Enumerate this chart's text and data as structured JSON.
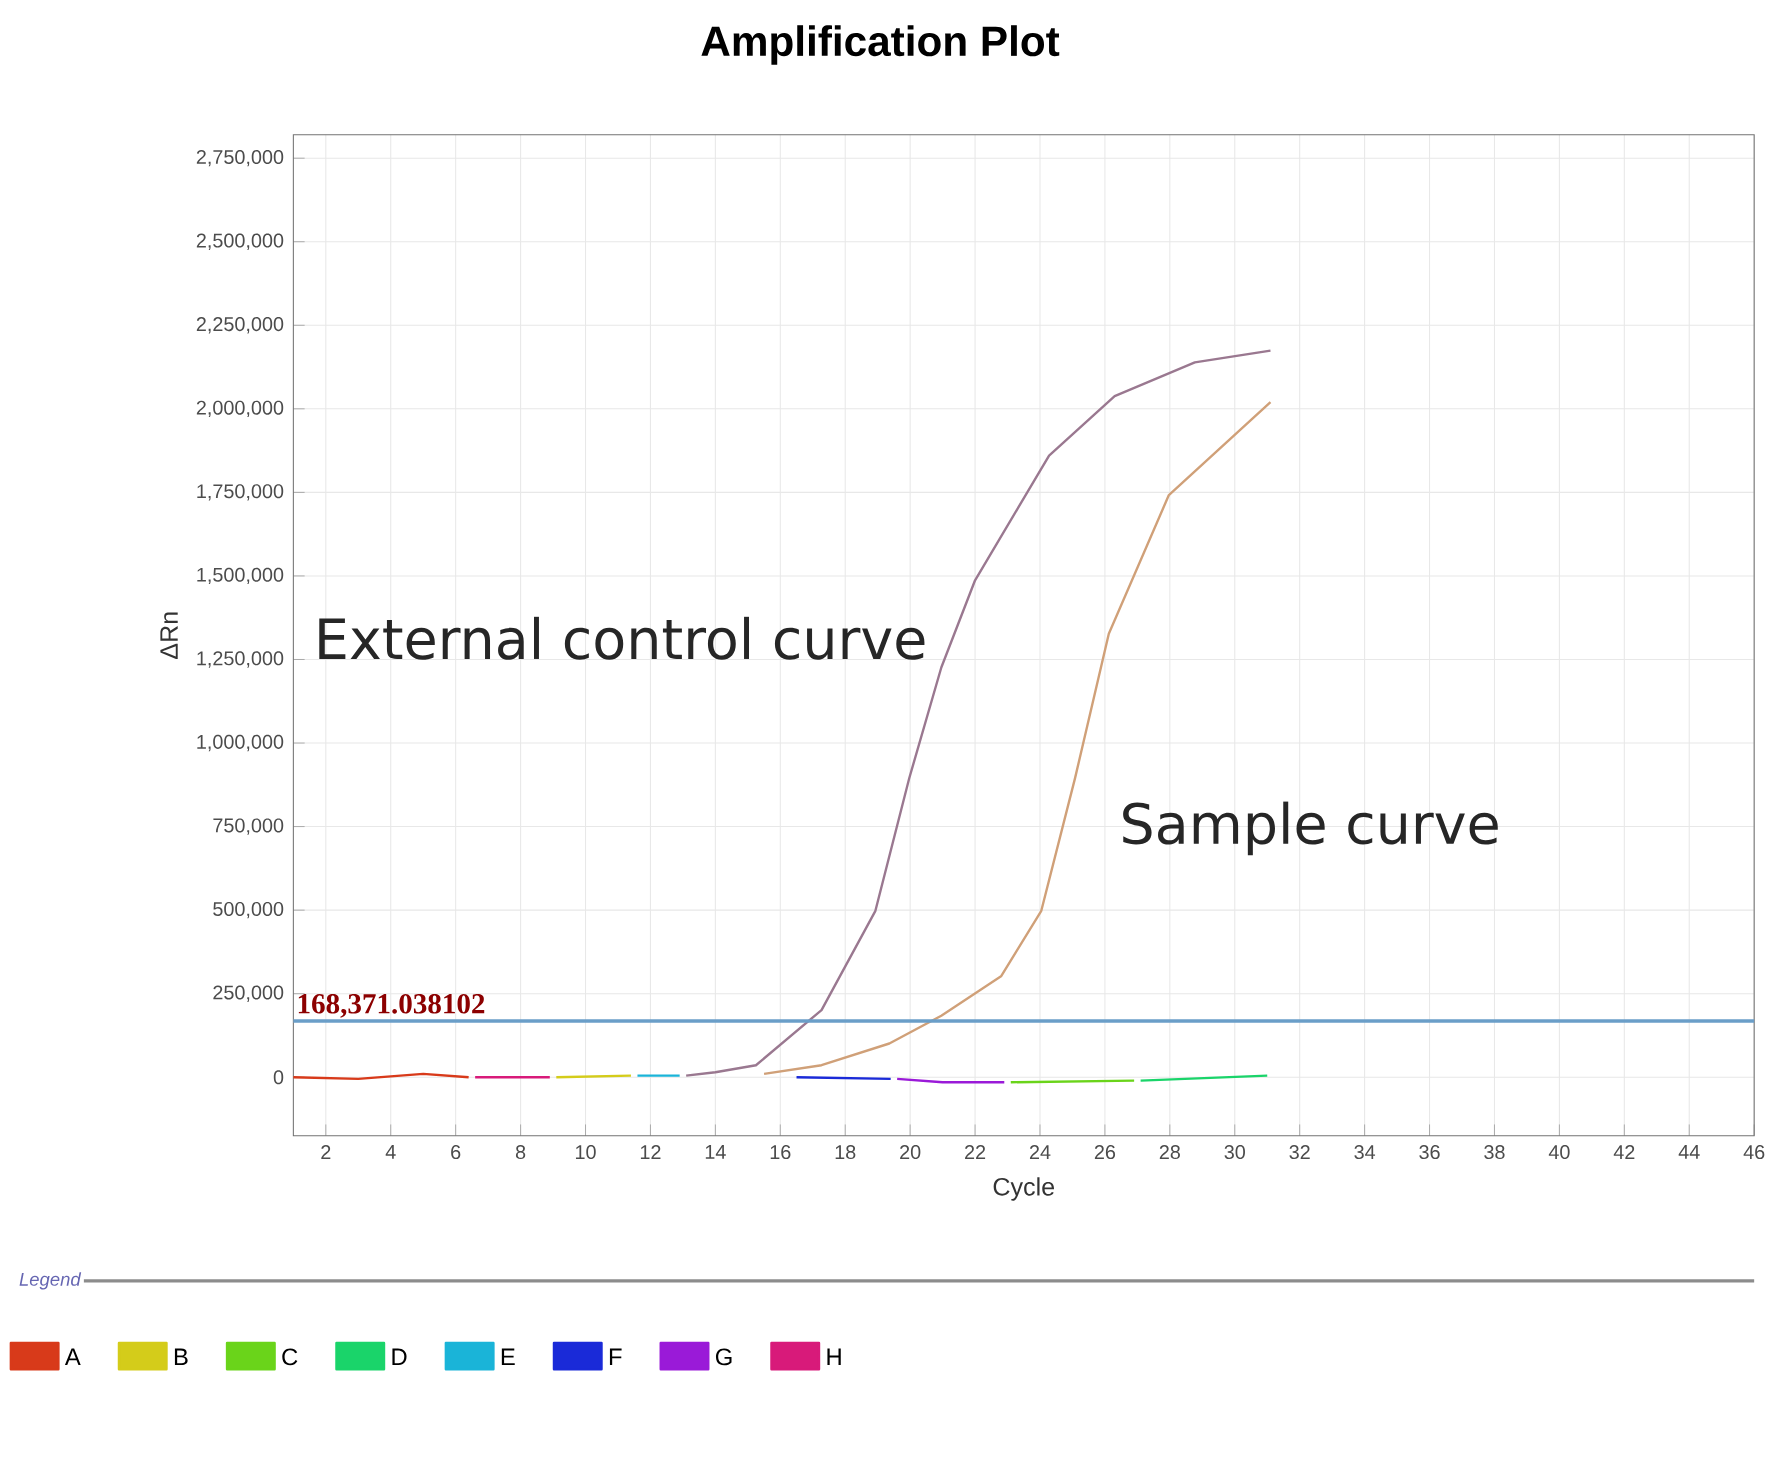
{
  "chart_data": {
    "type": "line",
    "title": "Amplification Plot",
    "xlabel": "Cycle",
    "ylabel": "ΔRn",
    "legend_title": "Legend",
    "xlim": [
      1,
      46
    ],
    "ylim": [
      -175000,
      2820000
    ],
    "xticks": [
      2,
      4,
      6,
      8,
      10,
      12,
      14,
      16,
      18,
      20,
      22,
      24,
      26,
      28,
      30,
      32,
      34,
      36,
      38,
      40,
      42,
      44,
      46
    ],
    "yticks": [
      {
        "value": 0,
        "label": "0"
      },
      {
        "value": 250000,
        "label": "250,000"
      },
      {
        "value": 500000,
        "label": "500,000"
      },
      {
        "value": 750000,
        "label": "750,000"
      },
      {
        "value": 1000000,
        "label": "1,000,000"
      },
      {
        "value": 1250000,
        "label": "1,250,000"
      },
      {
        "value": 1500000,
        "label": "1,500,000"
      },
      {
        "value": 1750000,
        "label": "1,750,000"
      },
      {
        "value": 2000000,
        "label": "2,000,000"
      },
      {
        "value": 2250000,
        "label": "2,250,000"
      },
      {
        "value": 2500000,
        "label": "2,500,000"
      },
      {
        "value": 2750000,
        "label": "2,750,000"
      }
    ],
    "grid": true,
    "legend": "bottom",
    "series": [
      {
        "name": "A",
        "color": "#d83a1a",
        "x": [
          1,
          3,
          5,
          6.4
        ],
        "values": [
          0,
          -5000,
          10000,
          0
        ]
      },
      {
        "name": "B",
        "color": "#d4cc1a",
        "x": [
          9.1,
          11.4
        ],
        "values": [
          0,
          5000
        ]
      },
      {
        "name": "C",
        "color": "#6ad41a",
        "x": [
          23.1,
          26.9
        ],
        "values": [
          -15000,
          -10000
        ]
      },
      {
        "name": "D",
        "color": "#1ad46a",
        "x": [
          27.1,
          31
        ],
        "values": [
          -10000,
          5000
        ]
      },
      {
        "name": "E",
        "color": "#1ab4d8",
        "x": [
          11.6,
          12.9
        ],
        "values": [
          5000,
          5000
        ]
      },
      {
        "name": "F",
        "color": "#1a2ad8",
        "x": [
          16.5,
          19.4
        ],
        "values": [
          0,
          -5000
        ]
      },
      {
        "name": "G",
        "color": "#9a1ad8",
        "x": [
          19.6,
          21,
          22.9
        ],
        "values": [
          -5000,
          -15000,
          -15000
        ]
      },
      {
        "name": "H",
        "color": "#d81a7a",
        "x": [
          6.6,
          8.9
        ],
        "values": [
          0,
          0
        ]
      },
      {
        "color": "#9a7890",
        "x": [
          13.1,
          14,
          15.25,
          17.27,
          18.93,
          19.97,
          20.96,
          22.0,
          24.28,
          26.3,
          28.77,
          31.1
        ],
        "values": [
          5000,
          15000,
          36000,
          201000,
          498000,
          894000,
          1226000,
          1487000,
          1860000,
          2038000,
          2139000,
          2174000
        ]
      },
      {
        "color": "#d0a078",
        "x": [
          15.5,
          17.27,
          19.36,
          20.96,
          22.8,
          24.04,
          25.08,
          26.12,
          27.97,
          31.1
        ],
        "values": [
          10000,
          36000,
          101000,
          184000,
          302000,
          498000,
          895000,
          1327000,
          1742000,
          2020000
        ]
      }
    ],
    "ref_lines": [
      {
        "axis": "y",
        "value": 168371.038102,
        "label": "168,371.038102",
        "color": "#6a9ec8"
      }
    ],
    "annotations": [
      "External control curve",
      "Sample curve"
    ]
  }
}
